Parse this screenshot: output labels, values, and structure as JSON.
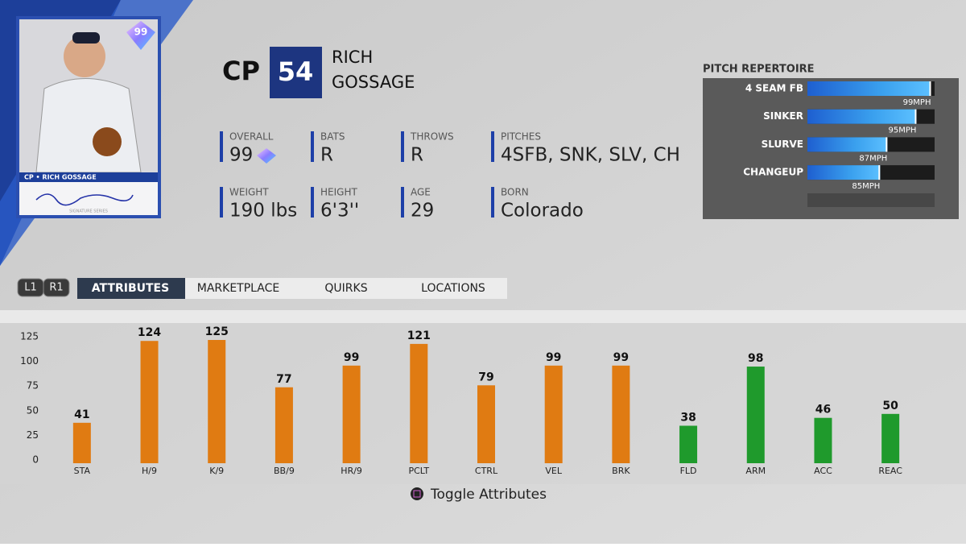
{
  "card": {
    "rating": "99",
    "caption": "CP • RICH GOSSAGE",
    "series": "SIGNATURE SERIES"
  },
  "header": {
    "position": "CP",
    "number": "54",
    "first_name": "RICH",
    "last_name": "GOSSAGE"
  },
  "info": [
    {
      "label": "OVERALL",
      "value": "99"
    },
    {
      "label": "BATS",
      "value": "R"
    },
    {
      "label": "THROWS",
      "value": "R"
    },
    {
      "label": "PITCHES",
      "value": "4SFB, SNK, SLV, CH"
    },
    {
      "label": "WEIGHT",
      "value": "190 lbs"
    },
    {
      "label": "HEIGHT",
      "value": "6'3''"
    },
    {
      "label": "AGE",
      "value": "29"
    },
    {
      "label": "BORN",
      "value": "Colorado"
    }
  ],
  "pitch_repertoire": {
    "title": "PITCH REPERTOIRE",
    "names": [
      "4 SEAM FB",
      "SINKER",
      "SLURVE",
      "CHANGEUP"
    ],
    "values": [
      99,
      95,
      87,
      85
    ],
    "value_labels": [
      "99MPH",
      "95MPH",
      "87MPH",
      "85MPH"
    ],
    "xlim": [
      65,
      100
    ]
  },
  "tabs": {
    "buttons": [
      "L1",
      "R1"
    ],
    "items": [
      "ATTRIBUTES",
      "MARKETPLACE",
      "QUIRKS",
      "LOCATIONS"
    ]
  },
  "chart_data": {
    "type": "bar",
    "categories": [
      "STA",
      "H/9",
      "K/9",
      "BB/9",
      "HR/9",
      "PCLT",
      "CTRL",
      "VEL",
      "BRK",
      "FLD",
      "ARM",
      "ACC",
      "REAC"
    ],
    "values": [
      41,
      124,
      125,
      77,
      99,
      121,
      79,
      99,
      99,
      38,
      98,
      46,
      50
    ],
    "colors": [
      "#e07b12",
      "#e07b12",
      "#e07b12",
      "#e07b12",
      "#e07b12",
      "#e07b12",
      "#e07b12",
      "#e07b12",
      "#e07b12",
      "#1f9a2c",
      "#1f9a2c",
      "#1f9a2c",
      "#1f9a2c"
    ],
    "ylim": [
      0,
      125
    ],
    "yticks": [
      0,
      25,
      50,
      75,
      100,
      125
    ]
  },
  "footer": {
    "hint": "Toggle Attributes"
  }
}
